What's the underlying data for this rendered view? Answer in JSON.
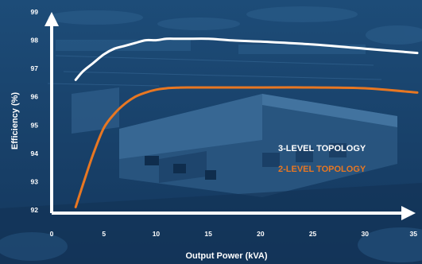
{
  "chart_data": {
    "type": "line",
    "xlabel": "Output Power (kVA)",
    "ylabel": "Efficiency (%)",
    "xlim": [
      0,
      35
    ],
    "ylim": [
      92,
      99
    ],
    "xticks": [
      0,
      5,
      10,
      15,
      20,
      25,
      30,
      35
    ],
    "yticks": [
      92,
      93,
      94,
      95,
      96,
      97,
      98,
      99
    ],
    "grid": false,
    "legend_position": "right",
    "series": [
      {
        "name": "3-LEVEL TOPOLOGY",
        "color": "#ffffff",
        "x": [
          2.3,
          3,
          4,
          5,
          6,
          7,
          8,
          9,
          10,
          11,
          12,
          13,
          15,
          17,
          20,
          25,
          30,
          35
        ],
        "y": [
          96.6,
          96.9,
          97.2,
          97.5,
          97.7,
          97.8,
          97.9,
          98.0,
          98.0,
          98.05,
          98.05,
          98.05,
          98.05,
          98.0,
          97.95,
          97.85,
          97.7,
          97.55
        ]
      },
      {
        "name": "2-LEVEL TOPOLOGY",
        "color": "#e87722",
        "x": [
          2.3,
          3,
          4,
          5,
          6,
          7,
          8,
          9,
          10,
          11,
          12,
          13,
          15,
          17,
          20,
          25,
          30,
          35
        ],
        "y": [
          92.1,
          92.9,
          94.0,
          94.9,
          95.4,
          95.75,
          96.0,
          96.15,
          96.25,
          96.3,
          96.32,
          96.33,
          96.33,
          96.33,
          96.33,
          96.33,
          96.3,
          96.15
        ]
      }
    ]
  },
  "colors": {
    "background_top": "#1d4c78",
    "background_bottom": "#14375d",
    "axis": "#ffffff"
  }
}
